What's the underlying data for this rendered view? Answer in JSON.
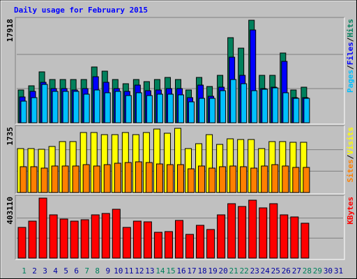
{
  "chart_data": [
    {
      "type": "bar",
      "title": "Daily usage for February 2015",
      "ylim": [
        0,
        17918
      ],
      "legend_separator": "/",
      "series": [
        {
          "name": "Hits",
          "color": "#00805c",
          "values": [
            5729,
            6461,
            8899,
            7558,
            7558,
            7558,
            7558,
            9752,
            9021,
            7558,
            6826,
            7558,
            7192,
            7558,
            7924,
            7558,
            5729,
            7924,
            6339,
            8289,
            14872,
            13043,
            17918,
            8289,
            8289,
            12190,
            5729,
            6217,
            null,
            null,
            null
          ]
        },
        {
          "name": "Files",
          "color": "#0000ff",
          "values": [
            4510,
            5486,
            7070,
            5973,
            5973,
            5729,
            5973,
            8045,
            7070,
            5973,
            5486,
            6583,
            5607,
            5729,
            5973,
            5973,
            4388,
            6583,
            4632,
            6217,
            11459,
            8289,
            16213,
            5973,
            6217,
            10727,
            4388,
            4388,
            null,
            null,
            null
          ]
        },
        {
          "name": "Pages",
          "color": "#00c0ff",
          "values": [
            3779,
            4388,
            6705,
            5486,
            5486,
            5486,
            4998,
            5729,
            5242,
            5486,
            4754,
            5242,
            4754,
            4998,
            4998,
            4876,
            3657,
            4267,
            4267,
            5607,
            7558,
            6826,
            5607,
            5851,
            6095,
            5242,
            4267,
            4267,
            null,
            null,
            null
          ]
        }
      ]
    },
    {
      "type": "bar",
      "ylim": [
        0,
        1735
      ],
      "legend_separator": "/",
      "series": [
        {
          "name": "Visits",
          "color": "#ffff00",
          "values": [
            1188,
            1188,
            1169,
            1245,
            1377,
            1377,
            1622,
            1622,
            1565,
            1565,
            1622,
            1565,
            1622,
            1716,
            1603,
            1735,
            1188,
            1320,
            1565,
            1301,
            1452,
            1433,
            1433,
            1188,
            1377,
            1377,
            1358,
            1358,
            null,
            null,
            null
          ]
        },
        {
          "name": "Sites",
          "color": "#ff8000",
          "values": [
            698,
            698,
            660,
            717,
            717,
            717,
            754,
            717,
            754,
            792,
            811,
            830,
            811,
            773,
            754,
            754,
            641,
            717,
            660,
            698,
            717,
            698,
            660,
            717,
            754,
            717,
            679,
            679,
            null,
            null,
            null
          ]
        }
      ]
    },
    {
      "type": "bar",
      "ylim": [
        0,
        403110
      ],
      "categories": [
        "1",
        "2",
        "3",
        "4",
        "5",
        "6",
        "7",
        "8",
        "9",
        "10",
        "11",
        "12",
        "13",
        "14",
        "15",
        "16",
        "17",
        "18",
        "19",
        "20",
        "21",
        "22",
        "23",
        "24",
        "25",
        "26",
        "27",
        "28",
        "29",
        "30",
        "31"
      ],
      "category_colors": [
        "#00805c",
        "#0000a0",
        "#0000a0",
        "#0000a0",
        "#0000a0",
        "#0000a0",
        "#00805c",
        "#00805c",
        "#0000a0",
        "#0000a0",
        "#0000a0",
        "#0000a0",
        "#0000a0",
        "#00805c",
        "#00805c",
        "#0000a0",
        "#0000a0",
        "#0000a0",
        "#0000a0",
        "#0000a0",
        "#00805c",
        "#00805c",
        "#0000a0",
        "#0000a0",
        "#0000a0",
        "#0000a0",
        "#0000a0",
        "#00805c",
        "#00805c",
        "#0000a0",
        "#0000a0"
      ],
      "series": [
        {
          "name": "KBytes",
          "color": "#ff0000",
          "values": [
            206228,
            248411,
            403110,
            290594,
            262472,
            248411,
            257785,
            290594,
            299968,
            328090,
            206228,
            248411,
            243724,
            173419,
            178106,
            253098,
            159358,
            220289,
            192167,
            290594,
            365586,
            346838,
            389021,
            337464,
            365586,
            290594,
            276533,
            234350,
            null,
            null,
            null
          ]
        }
      ]
    }
  ]
}
